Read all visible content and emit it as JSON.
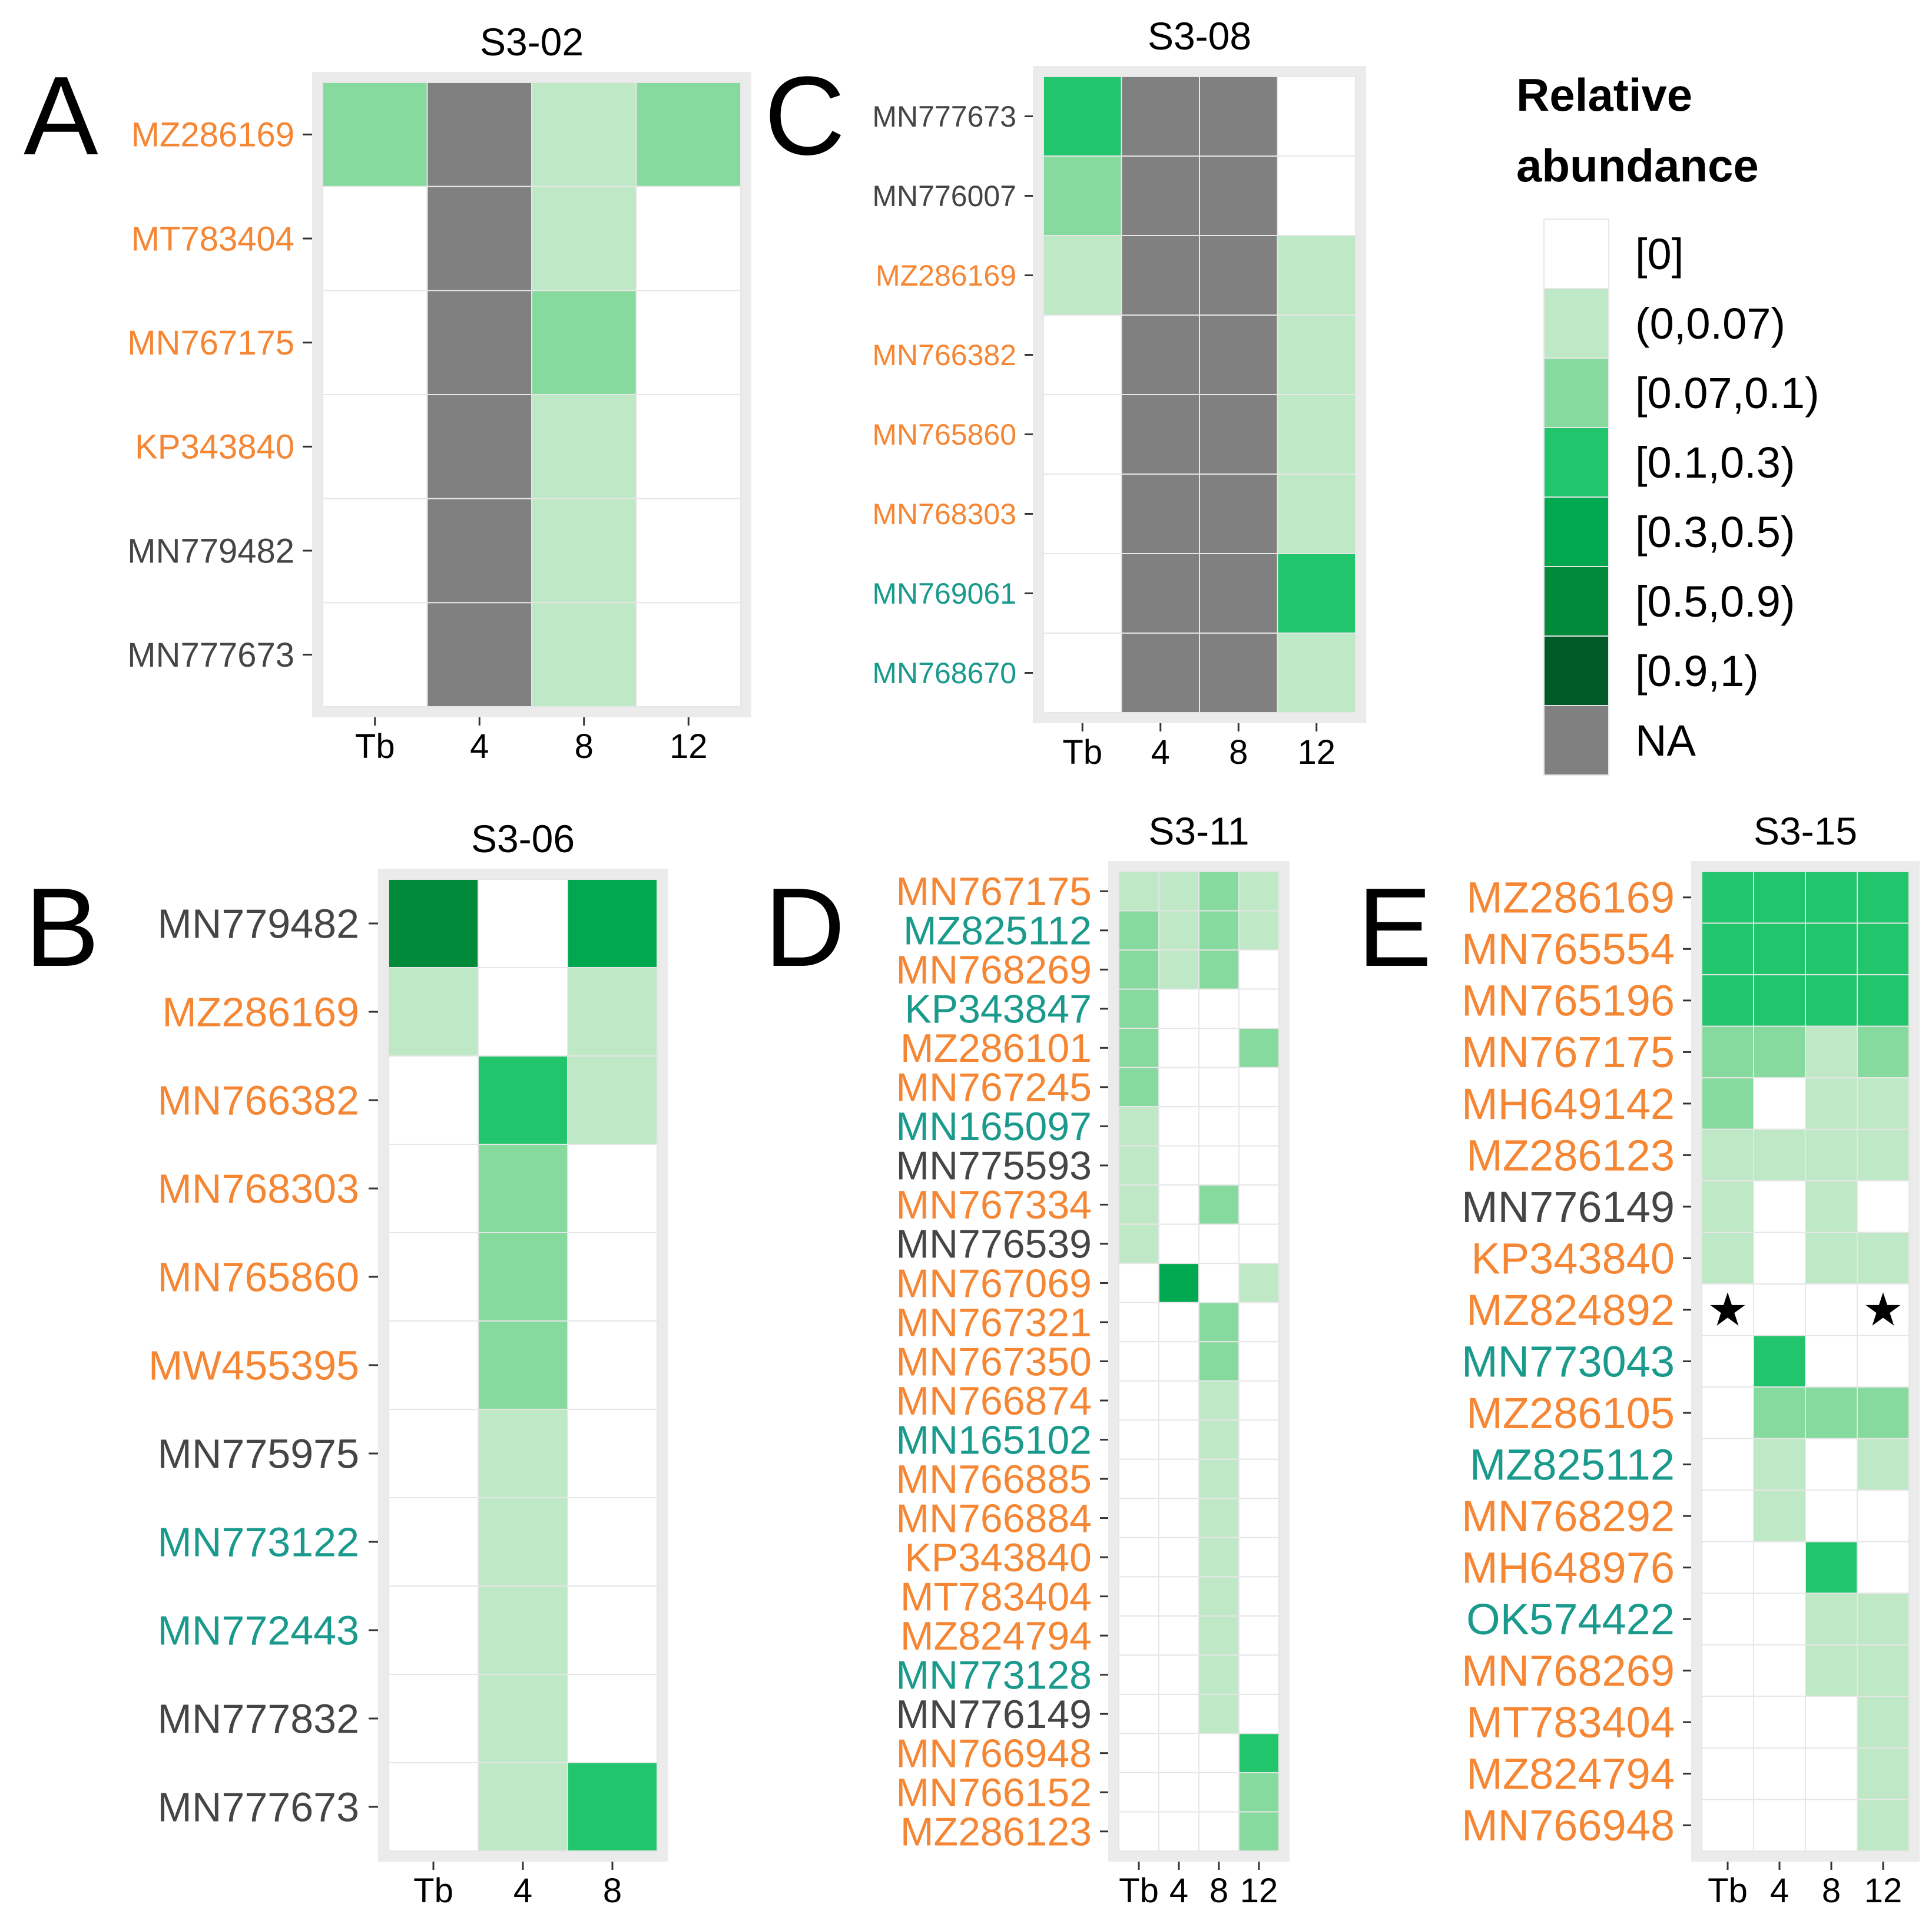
{
  "colors": {
    "orange": "#F58634",
    "teal": "#1A9A8C",
    "gray": "#454545",
    "na": "#808080",
    "scale": [
      "#FFFFFF",
      "#BFE8C6",
      "#87DA9D",
      "#22C46C",
      "#00A850",
      "#008A3A",
      "#005A28"
    ]
  },
  "legend": {
    "title_line1": "Relative",
    "title_line2": "abundance",
    "labels": [
      "[0]",
      "(0,0.07)",
      "[0.07,0.1)",
      "[0.1,0.3)",
      "[0.3,0.5)",
      "[0.5,0.9)",
      "[0.9,1)",
      "NA"
    ]
  },
  "chart_data": [
    {
      "type": "heatmap",
      "panel": "A",
      "title": "S3-02",
      "columns": [
        "Tb",
        "4",
        "8",
        "12"
      ],
      "rows": [
        {
          "label": "MZ286169",
          "color": "orange",
          "values": [
            2,
            "NA",
            1,
            2
          ]
        },
        {
          "label": "MT783404",
          "color": "orange",
          "values": [
            0,
            "NA",
            1,
            0
          ]
        },
        {
          "label": "MN767175",
          "color": "orange",
          "values": [
            0,
            "NA",
            2,
            0
          ]
        },
        {
          "label": "KP343840",
          "color": "orange",
          "values": [
            0,
            "NA",
            1,
            0
          ]
        },
        {
          "label": "MN779482",
          "color": "gray",
          "values": [
            0,
            "NA",
            1,
            0
          ]
        },
        {
          "label": "MN777673",
          "color": "gray",
          "values": [
            0,
            "NA",
            1,
            0
          ]
        }
      ]
    },
    {
      "type": "heatmap",
      "panel": "C",
      "title": "S3-08",
      "columns": [
        "Tb",
        "4",
        "8",
        "12"
      ],
      "rows": [
        {
          "label": "MN777673",
          "color": "gray",
          "values": [
            3,
            "NA",
            "NA",
            0
          ]
        },
        {
          "label": "MN776007",
          "color": "gray",
          "values": [
            2,
            "NA",
            "NA",
            0
          ]
        },
        {
          "label": "MZ286169",
          "color": "orange",
          "values": [
            1,
            "NA",
            "NA",
            1
          ]
        },
        {
          "label": "MN766382",
          "color": "orange",
          "values": [
            0,
            "NA",
            "NA",
            1
          ]
        },
        {
          "label": "MN765860",
          "color": "orange",
          "values": [
            0,
            "NA",
            "NA",
            1
          ]
        },
        {
          "label": "MN768303",
          "color": "orange",
          "values": [
            0,
            "NA",
            "NA",
            1
          ]
        },
        {
          "label": "MN769061",
          "color": "teal",
          "values": [
            0,
            "NA",
            "NA",
            3
          ]
        },
        {
          "label": "MN768670",
          "color": "teal",
          "values": [
            0,
            "NA",
            "NA",
            1
          ]
        }
      ]
    },
    {
      "type": "heatmap",
      "panel": "B",
      "title": "S3-06",
      "columns": [
        "Tb",
        "4",
        "8"
      ],
      "rows": [
        {
          "label": "MN779482",
          "color": "gray",
          "values": [
            5,
            0,
            4
          ]
        },
        {
          "label": "MZ286169",
          "color": "orange",
          "values": [
            1,
            0,
            1
          ]
        },
        {
          "label": "MN766382",
          "color": "orange",
          "values": [
            0,
            3,
            1
          ]
        },
        {
          "label": "MN768303",
          "color": "orange",
          "values": [
            0,
            2,
            0
          ]
        },
        {
          "label": "MN765860",
          "color": "orange",
          "values": [
            0,
            2,
            0
          ]
        },
        {
          "label": "MW455395",
          "color": "orange",
          "values": [
            0,
            2,
            0
          ]
        },
        {
          "label": "MN775975",
          "color": "gray",
          "values": [
            0,
            1,
            0
          ]
        },
        {
          "label": "MN773122",
          "color": "teal",
          "values": [
            0,
            1,
            0
          ]
        },
        {
          "label": "MN772443",
          "color": "teal",
          "values": [
            0,
            1,
            0
          ]
        },
        {
          "label": "MN777832",
          "color": "gray",
          "values": [
            0,
            1,
            0
          ]
        },
        {
          "label": "MN777673",
          "color": "gray",
          "values": [
            0,
            1,
            3
          ]
        }
      ]
    },
    {
      "type": "heatmap",
      "panel": "D",
      "title": "S3-11",
      "columns": [
        "Tb",
        "4",
        "8",
        "12"
      ],
      "rows": [
        {
          "label": "MN767175",
          "color": "orange",
          "values": [
            1,
            1,
            2,
            1
          ]
        },
        {
          "label": "MZ825112",
          "color": "teal",
          "values": [
            2,
            1,
            2,
            1
          ]
        },
        {
          "label": "MN768269",
          "color": "orange",
          "values": [
            2,
            1,
            2,
            0
          ]
        },
        {
          "label": "KP343847",
          "color": "teal",
          "values": [
            2,
            0,
            0,
            0
          ]
        },
        {
          "label": "MZ286101",
          "color": "orange",
          "values": [
            2,
            0,
            0,
            2
          ]
        },
        {
          "label": "MN767245",
          "color": "orange",
          "values": [
            2,
            0,
            0,
            0
          ]
        },
        {
          "label": "MN165097",
          "color": "teal",
          "values": [
            1,
            0,
            0,
            0
          ]
        },
        {
          "label": "MN775593",
          "color": "gray",
          "values": [
            1,
            0,
            0,
            0
          ]
        },
        {
          "label": "MN767334",
          "color": "orange",
          "values": [
            1,
            0,
            2,
            0
          ]
        },
        {
          "label": "MN776539",
          "color": "gray",
          "values": [
            1,
            0,
            0,
            0
          ]
        },
        {
          "label": "MN767069",
          "color": "orange",
          "values": [
            0,
            4,
            0,
            1
          ]
        },
        {
          "label": "MN767321",
          "color": "orange",
          "values": [
            0,
            0,
            2,
            0
          ]
        },
        {
          "label": "MN767350",
          "color": "orange",
          "values": [
            0,
            0,
            2,
            0
          ]
        },
        {
          "label": "MN766874",
          "color": "orange",
          "values": [
            0,
            0,
            1,
            0
          ]
        },
        {
          "label": "MN165102",
          "color": "teal",
          "values": [
            0,
            0,
            1,
            0
          ]
        },
        {
          "label": "MN766885",
          "color": "orange",
          "values": [
            0,
            0,
            1,
            0
          ]
        },
        {
          "label": "MN766884",
          "color": "orange",
          "values": [
            0,
            0,
            1,
            0
          ]
        },
        {
          "label": "KP343840",
          "color": "orange",
          "values": [
            0,
            0,
            1,
            0
          ]
        },
        {
          "label": "MT783404",
          "color": "orange",
          "values": [
            0,
            0,
            1,
            0
          ]
        },
        {
          "label": "MZ824794",
          "color": "orange",
          "values": [
            0,
            0,
            1,
            0
          ]
        },
        {
          "label": "MN773128",
          "color": "teal",
          "values": [
            0,
            0,
            1,
            0
          ]
        },
        {
          "label": "MN776149",
          "color": "gray",
          "values": [
            0,
            0,
            1,
            0
          ]
        },
        {
          "label": "MN766948",
          "color": "orange",
          "values": [
            0,
            0,
            0,
            3
          ]
        },
        {
          "label": "MN766152",
          "color": "orange",
          "values": [
            0,
            0,
            0,
            2
          ]
        },
        {
          "label": "MZ286123",
          "color": "orange",
          "values": [
            0,
            0,
            0,
            2
          ]
        }
      ]
    },
    {
      "type": "heatmap",
      "panel": "E",
      "title": "S3-15",
      "columns": [
        "Tb",
        "4",
        "8",
        "12"
      ],
      "star_marker": "★",
      "rows": [
        {
          "label": "MZ286169",
          "color": "orange",
          "values": [
            3,
            3,
            3,
            3
          ]
        },
        {
          "label": "MN765554",
          "color": "orange",
          "values": [
            3,
            3,
            3,
            3
          ]
        },
        {
          "label": "MN765196",
          "color": "orange",
          "values": [
            3,
            3,
            3,
            3
          ]
        },
        {
          "label": "MN767175",
          "color": "orange",
          "values": [
            2,
            2,
            1,
            2
          ]
        },
        {
          "label": "MH649142",
          "color": "orange",
          "values": [
            2,
            0,
            1,
            1
          ]
        },
        {
          "label": "MZ286123",
          "color": "orange",
          "values": [
            1,
            1,
            1,
            1
          ]
        },
        {
          "label": "MN776149",
          "color": "gray",
          "values": [
            1,
            0,
            1,
            0
          ]
        },
        {
          "label": "KP343840",
          "color": "orange",
          "values": [
            1,
            0,
            1,
            1
          ]
        },
        {
          "label": "MZ824892",
          "color": "orange",
          "values": [
            0,
            0,
            0,
            0
          ],
          "stars": [
            0,
            3
          ]
        },
        {
          "label": "MN773043",
          "color": "teal",
          "values": [
            0,
            3,
            0,
            0
          ]
        },
        {
          "label": "MZ286105",
          "color": "orange",
          "values": [
            0,
            2,
            2,
            2
          ]
        },
        {
          "label": "MZ825112",
          "color": "teal",
          "values": [
            0,
            1,
            0,
            1
          ]
        },
        {
          "label": "MN768292",
          "color": "orange",
          "values": [
            0,
            1,
            0,
            0
          ]
        },
        {
          "label": "MH648976",
          "color": "orange",
          "values": [
            0,
            0,
            3,
            0
          ]
        },
        {
          "label": "OK574422",
          "color": "teal",
          "values": [
            0,
            0,
            1,
            1
          ]
        },
        {
          "label": "MN768269",
          "color": "orange",
          "values": [
            0,
            0,
            1,
            1
          ]
        },
        {
          "label": "MT783404",
          "color": "orange",
          "values": [
            0,
            0,
            0,
            1
          ]
        },
        {
          "label": "MZ824794",
          "color": "orange",
          "values": [
            0,
            0,
            0,
            1
          ]
        },
        {
          "label": "MN766948",
          "color": "orange",
          "values": [
            0,
            0,
            0,
            1
          ]
        }
      ]
    }
  ]
}
